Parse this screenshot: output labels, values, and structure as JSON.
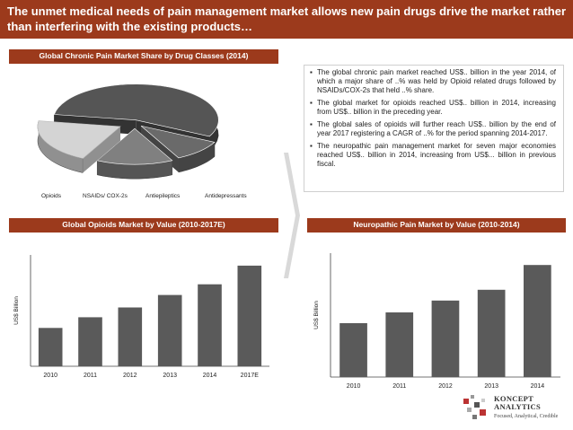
{
  "title": "The unmet medical needs of pain management market allows new pain drugs drive the market rather than interfering with the existing products…",
  "pie_section": {
    "header": "Global Chronic Pain Market Share by Drug Classes (2014)"
  },
  "opioid_section": {
    "header": "Global Opioids Market by Value (2010-2017E)"
  },
  "neuro_section": {
    "header": "Neuropathic Pain Market  by Value (2010-2014)"
  },
  "bullets": [
    "The global chronic pain market reached US$.. billion in the year 2014, of which a major share of ..% was held by Opioid related drugs followed by NSAIDs/COX-2s that held ..% share.",
    "The global market for opioids reached US$.. billion in 2014, increasing from US$.. billion in the preceding year.",
    "The global sales of opioids will further reach US$.. billion by the end of year 2017 registering a CAGR of ..% for the period spanning 2014-2017.",
    "The neuropathic pain management market for seven major economies reached US$.. billion in 2014, increasing from US$... billion in previous fiscal."
  ],
  "bullet_symbol": "▪",
  "logo": {
    "name_line1": "KONCEPT",
    "name_line2": "ANALYTICS",
    "tagline": "Focused, Analytical, Credible"
  },
  "colors": {
    "brand": "#9c3a1c",
    "bar": "#5a5a5a",
    "slice_light": "#cfcfcf"
  },
  "chart_data": [
    {
      "type": "pie",
      "title": "Global Chronic Pain Market Share by Drug Classes (2014)",
      "categories": [
        "Opioids",
        "NSAIDs/ COX-2s",
        "Antiepileptics",
        "Antidepressants"
      ],
      "values": [
        55,
        10,
        15,
        20
      ]
    },
    {
      "type": "bar",
      "title": "Global Opioids Market by Value (2010-2017E)",
      "categories": [
        "2010",
        "2011",
        "2012",
        "2013",
        "2014",
        "2017E"
      ],
      "values": [
        4.3,
        5.5,
        6.6,
        8,
        9.2,
        11.3
      ],
      "ylabel": "US$ Billion",
      "ylim": [
        0,
        12.5
      ]
    },
    {
      "type": "bar",
      "title": "Neuropathic Pain Market  by Value (2010-2014)",
      "categories": [
        "2010",
        "2011",
        "2012",
        "2013",
        "2014"
      ],
      "values": [
        5,
        6,
        7.1,
        8.1,
        10.4
      ],
      "ylabel": "US$ Billion",
      "ylim": [
        0,
        11.5
      ]
    }
  ]
}
